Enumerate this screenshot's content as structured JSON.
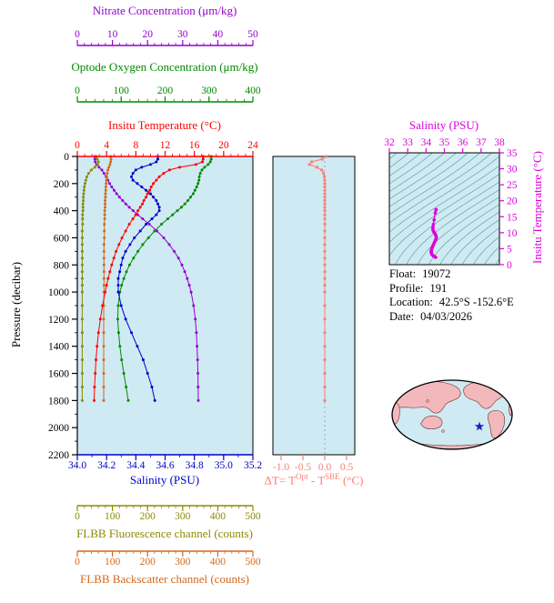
{
  "colors": {
    "nitrate": "#9400d3",
    "oxygen": "#008b00",
    "temperature": "#ff0000",
    "salinity": "#0000cd",
    "fluorescence": "#8b8b00",
    "backscatter": "#d2691e",
    "delta_t": "#fa8072",
    "ts": "#dd00dd",
    "contours": "#4d9999",
    "panel_bg": "#cfeaf2",
    "axis_black": "#000000",
    "map_land": "#f2b8bc",
    "map_land_edge": "#6b2b2b",
    "star": "#2020c8"
  },
  "meta": {
    "rows": [
      {
        "label": "Float:",
        "value": "19072"
      },
      {
        "label": "Profile:",
        "value": "191"
      },
      {
        "label": "Location:",
        "value": "42.5°S -152.6°E"
      },
      {
        "label": "Date:",
        "value": "04/03/2026"
      }
    ]
  },
  "chart_data": {
    "type": "line",
    "profile_panel": {
      "pressure_label": "Pressure (decibar)",
      "pressure_ticks": [
        0,
        200,
        400,
        600,
        800,
        1000,
        1200,
        1400,
        1600,
        1800,
        2000,
        2200
      ],
      "pressure_lim": [
        0,
        2200
      ],
      "pressure": [
        0,
        20,
        40,
        60,
        80,
        100,
        125,
        150,
        175,
        200,
        225,
        250,
        275,
        300,
        325,
        350,
        375,
        400,
        430,
        460,
        500,
        550,
        600,
        650,
        700,
        750,
        800,
        850,
        900,
        950,
        1000,
        1100,
        1200,
        1300,
        1400,
        1500,
        1600,
        1700,
        1800
      ],
      "axes": [
        {
          "key": "nitrate",
          "title": "Nitrate Concentration (μm/kg)",
          "lim": [
            0,
            50
          ],
          "minor_step": 2,
          "position": "top-outer",
          "ticks": [
            [
              0,
              "0"
            ],
            [
              10,
              "10"
            ],
            [
              20,
              "20"
            ],
            [
              30,
              "30"
            ],
            [
              40,
              "40"
            ],
            [
              50,
              "50"
            ]
          ]
        },
        {
          "key": "oxygen",
          "title": "Optode Oxygen Concentration (μm/kg)",
          "lim": [
            0,
            400
          ],
          "minor_step": 20,
          "position": "top-mid",
          "ticks": [
            [
              0,
              "0"
            ],
            [
              100,
              "100"
            ],
            [
              200,
              "200"
            ],
            [
              300,
              "300"
            ],
            [
              400,
              "400"
            ]
          ]
        },
        {
          "key": "temperature",
          "title": "Insitu Temperature (°C)",
          "lim": [
            0,
            24
          ],
          "minor_step": 1,
          "position": "top-inner",
          "ticks": [
            [
              0,
              "0"
            ],
            [
              4,
              "4"
            ],
            [
              8,
              "8"
            ],
            [
              12,
              "12"
            ],
            [
              16,
              "16"
            ],
            [
              20,
              "20"
            ],
            [
              24,
              "24"
            ]
          ]
        },
        {
          "key": "salinity",
          "title": "Salinity (PSU)",
          "lim": [
            34.0,
            35.2
          ],
          "minor_step": 0.1,
          "position": "bottom-inner",
          "ticks": [
            [
              34.0,
              "34.0"
            ],
            [
              34.2,
              "34.2"
            ],
            [
              34.4,
              "34.4"
            ],
            [
              34.6,
              "34.6"
            ],
            [
              34.8,
              "34.8"
            ],
            [
              35.0,
              "35.0"
            ],
            [
              35.2,
              "35.2"
            ]
          ]
        },
        {
          "key": "fluorescence",
          "title": "FLBB Fluorescence channel (counts)",
          "lim": [
            0,
            500
          ],
          "minor_step": 20,
          "position": "bottom-mid",
          "ticks": [
            [
              0,
              "0"
            ],
            [
              100,
              "100"
            ],
            [
              200,
              "200"
            ],
            [
              300,
              "300"
            ],
            [
              400,
              "400"
            ],
            [
              500,
              "500"
            ]
          ]
        },
        {
          "key": "backscatter",
          "title": "FLBB Backscatter channel (counts)",
          "lim": [
            0,
            500
          ],
          "minor_step": 20,
          "position": "bottom-outer",
          "ticks": [
            [
              0,
              "0"
            ],
            [
              100,
              "100"
            ],
            [
              200,
              "200"
            ],
            [
              300,
              "300"
            ],
            [
              400,
              "400"
            ],
            [
              500,
              "500"
            ]
          ]
        }
      ],
      "series": {
        "temperature": [
          17.2,
          17.2,
          17.1,
          16.2,
          14.0,
          12.6,
          11.8,
          11.2,
          10.8,
          10.4,
          10.1,
          9.9,
          9.6,
          9.4,
          9.1,
          8.9,
          8.6,
          8.3,
          8.0,
          7.6,
          7.1,
          6.6,
          6.1,
          5.7,
          5.3,
          5.0,
          4.7,
          4.45,
          4.2,
          4.0,
          3.8,
          3.45,
          3.15,
          2.9,
          2.7,
          2.55,
          2.45,
          2.35,
          2.3
        ],
        "salinity": [
          34.55,
          34.55,
          34.54,
          34.5,
          34.44,
          34.4,
          34.38,
          34.37,
          34.38,
          34.41,
          34.44,
          34.47,
          34.5,
          34.52,
          34.54,
          34.55,
          34.56,
          34.56,
          34.54,
          34.51,
          34.47,
          34.43,
          34.39,
          34.36,
          34.33,
          34.31,
          34.3,
          34.29,
          34.28,
          34.28,
          34.28,
          34.3,
          34.33,
          34.37,
          34.41,
          34.45,
          34.48,
          34.51,
          34.53
        ],
        "oxygen": [
          305,
          305,
          303,
          298,
          290,
          284,
          280,
          278,
          277,
          275,
          272,
          268,
          264,
          258,
          252,
          245,
          237,
          228,
          217,
          206,
          192,
          176,
          162,
          149,
          138,
          128,
          119,
          112,
          106,
          101,
          97,
          93,
          92,
          94,
          97,
          101,
          106,
          111,
          116
        ],
        "nitrate": [
          5.0,
          5.0,
          5.1,
          5.5,
          6.2,
          7.0,
          7.6,
          8.2,
          8.7,
          9.2,
          9.8,
          10.5,
          11.2,
          12.0,
          12.9,
          13.8,
          14.8,
          15.9,
          17.2,
          18.6,
          20.5,
          22.7,
          24.6,
          26.2,
          27.6,
          28.8,
          29.8,
          30.6,
          31.3,
          31.9,
          32.4,
          33.1,
          33.6,
          33.9,
          34.1,
          34.25,
          34.35,
          34.4,
          34.45
        ],
        "fluorescence": [
          55,
          57,
          60,
          58,
          50,
          40,
          32,
          27,
          24,
          22,
          20,
          19,
          18,
          17,
          17,
          16,
          16,
          16,
          15,
          15,
          15,
          14,
          14,
          14,
          14,
          14,
          14,
          14,
          14,
          14,
          14,
          14,
          14,
          14,
          14,
          14,
          14,
          14,
          14
        ],
        "backscatter": [
          95,
          96,
          95,
          93,
          90,
          87,
          85,
          84,
          83,
          82,
          81,
          81,
          80,
          80,
          79,
          79,
          79,
          78,
          78,
          78,
          77,
          77,
          77,
          76,
          76,
          76,
          76,
          76,
          76,
          76,
          76,
          75,
          75,
          75,
          75,
          75,
          75,
          75,
          75
        ]
      }
    },
    "delta_panel": {
      "title_prefix": "ΔT= T",
      "title_sup1": "Opt",
      "title_mid": " - T",
      "title_sup2": "SBE",
      "title_suffix": " (°C)",
      "lim": [
        -1.1875,
        0.6875
      ],
      "ticks": [
        [
          -1.0,
          "-1.0"
        ],
        [
          -0.5,
          "-0.5"
        ],
        [
          0.0,
          "0.0"
        ],
        [
          0.5,
          "0.5"
        ]
      ],
      "values": [
        0.02,
        -0.06,
        -0.3,
        -0.35,
        -0.18,
        -0.07,
        -0.03,
        -0.01,
        0,
        0,
        0,
        0,
        0,
        0,
        0,
        0,
        0,
        0,
        0,
        0,
        0,
        0,
        0,
        0,
        0,
        0,
        0,
        0,
        0,
        0,
        0,
        0,
        0,
        0,
        0,
        0,
        0,
        0,
        0
      ]
    },
    "ts_panel": {
      "sal_title": "Salinity (PSU)",
      "temp_title": "Insitu Temperature (°C)",
      "sal_lim": [
        32,
        38
      ],
      "sal_ticks": [
        [
          32,
          "32"
        ],
        [
          33,
          "33"
        ],
        [
          34,
          "34"
        ],
        [
          35,
          "35"
        ],
        [
          36,
          "36"
        ],
        [
          37,
          "37"
        ],
        [
          38,
          "38"
        ]
      ],
      "temp_lim": [
        0,
        35
      ],
      "temp_ticks": [
        [
          0,
          "0"
        ],
        [
          5,
          "5"
        ],
        [
          10,
          "10"
        ],
        [
          15,
          "15"
        ],
        [
          20,
          "20"
        ],
        [
          25,
          "25"
        ],
        [
          30,
          "30"
        ],
        [
          35,
          "35"
        ]
      ],
      "sigma_contours": {
        "min": 20,
        "max": 31,
        "step": 0.5
      }
    }
  }
}
